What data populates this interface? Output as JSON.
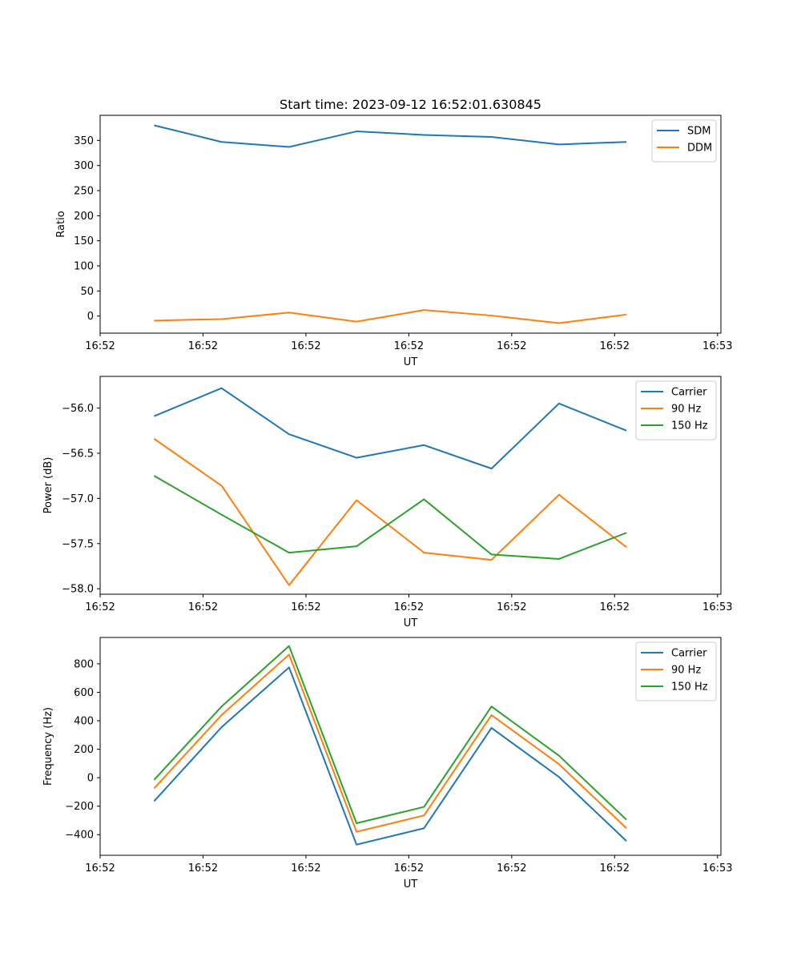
{
  "figure_title": "Start time: 2023-09-12 16:52:01.630845",
  "chart_data": [
    {
      "type": "line",
      "title": "Start time: 2023-09-12 16:52:01.630845",
      "xlabel": "UT",
      "ylabel": "Ratio",
      "x": [
        1,
        2,
        3,
        4,
        5,
        6,
        7,
        8
      ],
      "xlim": [
        0.2,
        9.4
      ],
      "x_ticks": [
        0.2,
        1.725,
        3.25,
        4.775,
        6.3,
        7.825,
        9.35
      ],
      "x_tick_labels": [
        "16:52",
        "16:52",
        "16:52",
        "16:52",
        "16:52",
        "16:52",
        "16:53"
      ],
      "ylim": [
        -34,
        400
      ],
      "y_ticks": [
        0,
        50,
        100,
        150,
        200,
        250,
        300,
        350
      ],
      "y_tick_labels": [
        "0",
        "50",
        "100",
        "150",
        "200",
        "250",
        "300",
        "350"
      ],
      "legend_position": "top-right",
      "series": [
        {
          "name": "SDM",
          "color": "#1f77b4",
          "values": [
            380,
            347,
            337,
            368,
            361,
            357,
            342,
            347
          ]
        },
        {
          "name": "DDM",
          "color": "#ff7f0e",
          "values": [
            -9,
            -6,
            7,
            -11,
            12,
            1,
            -14,
            3
          ]
        }
      ]
    },
    {
      "type": "line",
      "title": "",
      "xlabel": "UT",
      "ylabel": "Power (dB)",
      "x": [
        1,
        2,
        3,
        4,
        5,
        6,
        7,
        8
      ],
      "xlim": [
        0.2,
        9.4
      ],
      "x_ticks": [
        0.2,
        1.725,
        3.25,
        4.775,
        6.3,
        7.825,
        9.35
      ],
      "x_tick_labels": [
        "16:52",
        "16:52",
        "16:52",
        "16:52",
        "16:52",
        "16:52",
        "16:53"
      ],
      "ylim": [
        -58.06,
        -55.65
      ],
      "y_ticks": [
        -58.0,
        -57.5,
        -57.0,
        -56.5,
        -56.0
      ],
      "y_tick_labels": [
        "−58.0",
        "−57.5",
        "−57.0",
        "−56.5",
        "−56.0"
      ],
      "legend_position": "top-right",
      "series": [
        {
          "name": "Carrier",
          "color": "#1f77b4",
          "values": [
            -56.09,
            -55.78,
            -56.29,
            -56.55,
            -56.41,
            -56.67,
            -55.95,
            -56.25
          ]
        },
        {
          "name": "90 Hz",
          "color": "#ff7f0e",
          "values": [
            -56.34,
            -56.86,
            -57.96,
            -57.02,
            -57.6,
            -57.68,
            -56.96,
            -57.54
          ]
        },
        {
          "name": "150 Hz",
          "color": "#2ca02c",
          "values": [
            -56.75,
            -57.18,
            -57.6,
            -57.53,
            -57.01,
            -57.62,
            -57.67,
            -57.38
          ]
        }
      ]
    },
    {
      "type": "line",
      "title": "",
      "xlabel": "UT",
      "ylabel": "Frequency (Hz)",
      "x": [
        1,
        2,
        3,
        4,
        5,
        6,
        7,
        8
      ],
      "xlim": [
        0.2,
        9.4
      ],
      "x_ticks": [
        0.2,
        1.725,
        3.25,
        4.775,
        6.3,
        7.825,
        9.35
      ],
      "x_tick_labels": [
        "16:52",
        "16:52",
        "16:52",
        "16:52",
        "16:52",
        "16:52",
        "16:53"
      ],
      "ylim": [
        -545,
        985
      ],
      "y_ticks": [
        -400,
        -200,
        0,
        200,
        400,
        600,
        800
      ],
      "y_tick_labels": [
        "−400",
        "−200",
        "0",
        "200",
        "400",
        "600",
        "800"
      ],
      "legend_position": "top-right",
      "series": [
        {
          "name": "Carrier",
          "color": "#1f77b4",
          "values": [
            -165,
            355,
            775,
            -470,
            -355,
            350,
            5,
            -445
          ]
        },
        {
          "name": "90 Hz",
          "color": "#ff7f0e",
          "values": [
            -75,
            440,
            865,
            -380,
            -265,
            440,
            95,
            -355
          ]
        },
        {
          "name": "150 Hz",
          "color": "#2ca02c",
          "values": [
            -15,
            500,
            925,
            -320,
            -205,
            500,
            155,
            -295
          ]
        }
      ]
    }
  ]
}
